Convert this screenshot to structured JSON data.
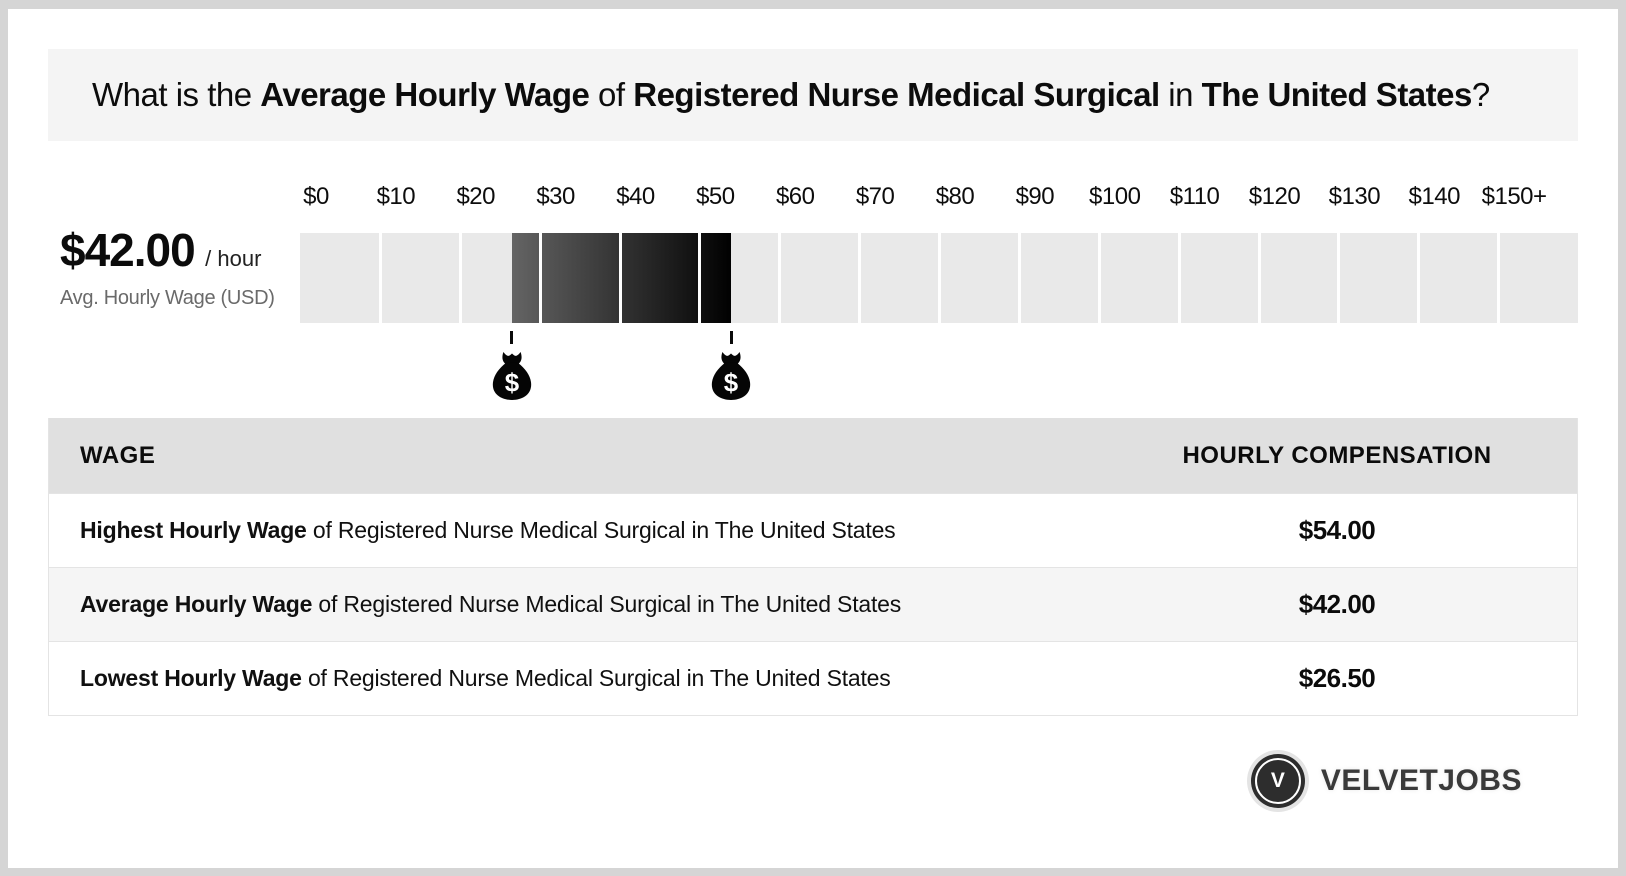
{
  "title": {
    "p1": "What is the ",
    "b1": "Average Hourly Wage",
    "p2": " of ",
    "b2": "Registered Nurse Medical Surgical",
    "p3": " in ",
    "b3": "The United States",
    "p4": "?"
  },
  "summary": {
    "amount": "$42.00",
    "per": "/ hour",
    "label": "Avg. Hourly Wage (USD)"
  },
  "chart_data": {
    "type": "bar",
    "title": "Hourly wage range of Registered Nurse Medical Surgical in The United States",
    "unit": "USD per hour",
    "axis_min": 0,
    "axis_max": 160,
    "segment_size": 10,
    "tick_labels": [
      "$0",
      "$10",
      "$20",
      "$30",
      "$40",
      "$50",
      "$60",
      "$70",
      "$80",
      "$90",
      "$100",
      "$110",
      "$120",
      "$130",
      "$140",
      "$150+"
    ],
    "lowest": 26.5,
    "average": 42,
    "highest": 54,
    "track_color": "#e9e9e9",
    "highlight_gradient_start": "#646464",
    "highlight_gradient_end": "#010101",
    "marker_icon": "money-bag",
    "marker_glyph": "$"
  },
  "table": {
    "headers": {
      "wage": "WAGE",
      "compensation": "HOURLY COMPENSATION"
    },
    "rows": [
      {
        "bold": "Highest Hourly Wage",
        "rest": " of Registered Nurse Medical Surgical in The United States",
        "value": "$54.00"
      },
      {
        "bold": "Average Hourly Wage",
        "rest": " of Registered Nurse Medical Surgical in The United States",
        "value": "$42.00"
      },
      {
        "bold": "Lowest Hourly Wage",
        "rest": " of Registered Nurse Medical Surgical in The United States",
        "value": "$26.50"
      }
    ]
  },
  "logo": {
    "monogram": "V",
    "text": "VELVETJOBS"
  },
  "colors": {
    "page_border": "#d5d5d5",
    "title_box_bg": "#f4f4f4",
    "table_header_bg": "#e0e0e0",
    "row_alt_bg": "#f5f5f5"
  }
}
